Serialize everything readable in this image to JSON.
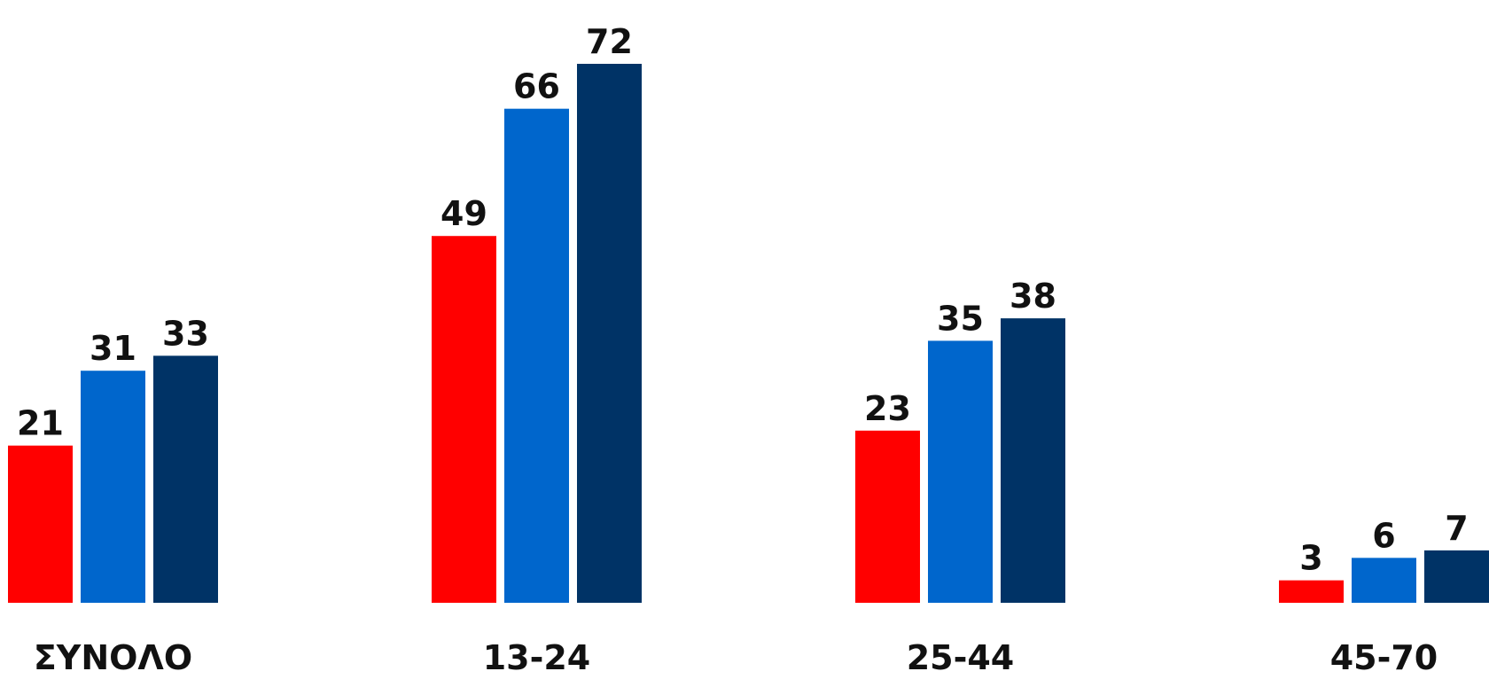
{
  "chart_data": {
    "type": "bar",
    "categories": [
      "ΣΥΝΟΛΟ",
      "13-24",
      "25-44",
      "45-70"
    ],
    "series": [
      {
        "color": "#ff0000",
        "values": [
          21,
          49,
          23,
          3
        ]
      },
      {
        "color": "#0066cc",
        "values": [
          31,
          66,
          35,
          6
        ]
      },
      {
        "color": "#003366",
        "values": [
          33,
          72,
          38,
          7
        ]
      }
    ],
    "value_labels": true,
    "grid": false,
    "ylim": [
      0,
      72
    ]
  }
}
